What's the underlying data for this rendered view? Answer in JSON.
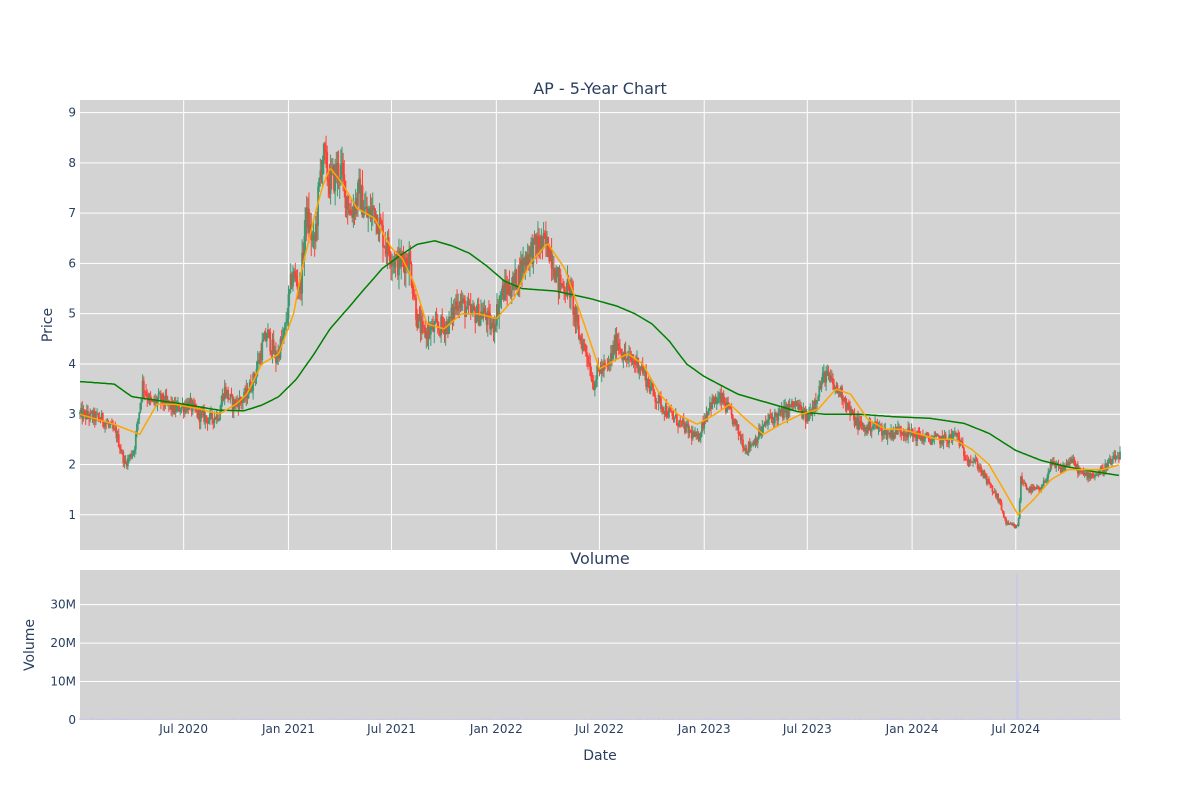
{
  "chart_data": [
    {
      "type": "candlestick",
      "title": "AP - 5-Year Chart",
      "ylabel": "Price",
      "xrange": [
        "2020-01-01",
        "2024-12-31"
      ],
      "ylim": [
        0.3,
        9.25
      ],
      "yticks": [
        1,
        2,
        3,
        4,
        5,
        6,
        7,
        8,
        9
      ],
      "grid": true,
      "legend": "none",
      "colors": {
        "up": "#3d9970",
        "down": "#ff4136",
        "ma_short": "#ffa500",
        "ma_long": "#008000",
        "plot_bg": "#d3d3d3"
      },
      "price_anchors": [
        [
          "2020-01-01",
          3.0
        ],
        [
          "2020-02-10",
          2.9
        ],
        [
          "2020-03-05",
          2.6
        ],
        [
          "2020-03-20",
          2.0
        ],
        [
          "2020-04-05",
          2.3
        ],
        [
          "2020-04-20",
          3.6
        ],
        [
          "2020-05-05",
          3.2
        ],
        [
          "2020-05-20",
          3.3
        ],
        [
          "2020-06-15",
          3.1
        ],
        [
          "2020-07-10",
          3.2
        ],
        [
          "2020-07-25",
          3.0
        ],
        [
          "2020-08-15",
          2.9
        ],
        [
          "2020-09-01",
          3.0
        ],
        [
          "2020-09-10",
          3.5
        ],
        [
          "2020-09-25",
          3.2
        ],
        [
          "2020-10-15",
          3.3
        ],
        [
          "2020-11-01",
          3.7
        ],
        [
          "2020-11-15",
          4.3
        ],
        [
          "2020-11-25",
          4.6
        ],
        [
          "2020-12-10",
          4.1
        ],
        [
          "2020-12-25",
          4.6
        ],
        [
          "2021-01-08",
          5.8
        ],
        [
          "2021-01-22",
          5.5
        ],
        [
          "2021-02-01",
          7.0
        ],
        [
          "2021-02-15",
          6.3
        ],
        [
          "2021-03-01",
          8.2
        ],
        [
          "2021-03-15",
          7.6
        ],
        [
          "2021-04-01",
          7.9
        ],
        [
          "2021-04-20",
          7.0
        ],
        [
          "2021-05-05",
          7.4
        ],
        [
          "2021-05-20",
          6.9
        ],
        [
          "2021-06-01",
          7.1
        ],
        [
          "2021-06-20",
          6.4
        ],
        [
          "2021-07-10",
          6.0
        ],
        [
          "2021-08-01",
          6.1
        ],
        [
          "2021-08-15",
          4.9
        ],
        [
          "2021-08-25",
          4.6
        ],
        [
          "2021-09-15",
          4.7
        ],
        [
          "2021-10-10",
          4.8
        ],
        [
          "2021-10-25",
          5.3
        ],
        [
          "2021-11-15",
          5.0
        ],
        [
          "2021-12-10",
          5.0
        ],
        [
          "2021-12-25",
          4.7
        ],
        [
          "2022-01-10",
          5.4
        ],
        [
          "2022-02-01",
          5.6
        ],
        [
          "2022-02-25",
          6.2
        ],
        [
          "2022-03-20",
          6.4
        ],
        [
          "2022-04-05",
          6.3
        ],
        [
          "2022-04-20",
          5.6
        ],
        [
          "2022-05-10",
          5.5
        ],
        [
          "2022-05-25",
          4.6
        ],
        [
          "2022-06-10",
          4.2
        ],
        [
          "2022-06-20",
          3.6
        ],
        [
          "2022-07-01",
          3.9
        ],
        [
          "2022-07-15",
          3.9
        ],
        [
          "2022-08-01",
          4.5
        ],
        [
          "2022-08-15",
          4.1
        ],
        [
          "2022-09-10",
          4.0
        ],
        [
          "2022-09-25",
          3.6
        ],
        [
          "2022-10-10",
          3.3
        ],
        [
          "2022-11-01",
          3.0
        ],
        [
          "2022-12-01",
          2.7
        ],
        [
          "2022-12-20",
          2.5
        ],
        [
          "2023-01-10",
          3.2
        ],
        [
          "2023-02-01",
          3.3
        ],
        [
          "2023-02-20",
          2.9
        ],
        [
          "2023-03-15",
          2.3
        ],
        [
          "2023-04-01",
          2.5
        ],
        [
          "2023-04-25",
          2.9
        ],
        [
          "2023-05-15",
          3.0
        ],
        [
          "2023-06-10",
          3.2
        ],
        [
          "2023-07-01",
          2.9
        ],
        [
          "2023-07-15",
          3.3
        ],
        [
          "2023-08-01",
          3.8
        ],
        [
          "2023-08-20",
          3.5
        ],
        [
          "2023-09-01",
          3.4
        ],
        [
          "2023-09-20",
          2.9
        ],
        [
          "2023-10-10",
          2.7
        ],
        [
          "2023-10-25",
          2.8
        ],
        [
          "2023-11-20",
          2.6
        ],
        [
          "2023-12-10",
          2.7
        ],
        [
          "2024-01-01",
          2.6
        ],
        [
          "2024-02-01",
          2.5
        ],
        [
          "2024-03-01",
          2.5
        ],
        [
          "2024-03-20",
          2.6
        ],
        [
          "2024-04-01",
          2.2
        ],
        [
          "2024-04-25",
          2.0
        ],
        [
          "2024-05-15",
          1.6
        ],
        [
          "2024-06-01",
          1.3
        ],
        [
          "2024-06-15",
          0.8
        ],
        [
          "2024-07-05",
          0.75
        ],
        [
          "2024-07-10",
          1.7
        ],
        [
          "2024-07-25",
          1.5
        ],
        [
          "2024-08-15",
          1.5
        ],
        [
          "2024-09-01",
          2.0
        ],
        [
          "2024-09-20",
          1.9
        ],
        [
          "2024-10-05",
          2.1
        ],
        [
          "2024-10-25",
          1.8
        ],
        [
          "2024-11-20",
          1.8
        ],
        [
          "2024-12-10",
          2.0
        ],
        [
          "2024-12-31",
          2.2
        ]
      ],
      "ma_short_anchors": [
        [
          "2020-01-01",
          3.0
        ],
        [
          "2020-03-01",
          2.8
        ],
        [
          "2020-04-15",
          2.6
        ],
        [
          "2020-05-15",
          3.2
        ],
        [
          "2020-06-15",
          3.2
        ],
        [
          "2020-08-01",
          3.1
        ],
        [
          "2020-09-01",
          3.0
        ],
        [
          "2020-10-01",
          3.2
        ],
        [
          "2020-10-20",
          3.4
        ],
        [
          "2020-11-15",
          4.0
        ],
        [
          "2020-12-15",
          4.2
        ],
        [
          "2021-01-10",
          5.0
        ],
        [
          "2021-01-25",
          5.9
        ],
        [
          "2021-02-15",
          6.9
        ],
        [
          "2021-03-01",
          7.5
        ],
        [
          "2021-03-15",
          7.9
        ],
        [
          "2021-04-05",
          7.6
        ],
        [
          "2021-05-01",
          7.1
        ],
        [
          "2021-06-01",
          6.9
        ],
        [
          "2021-07-01",
          6.3
        ],
        [
          "2021-07-20",
          6.1
        ],
        [
          "2021-08-10",
          5.6
        ],
        [
          "2021-09-01",
          4.8
        ],
        [
          "2021-10-01",
          4.7
        ],
        [
          "2021-11-01",
          5.0
        ],
        [
          "2021-12-01",
          5.0
        ],
        [
          "2022-01-01",
          4.9
        ],
        [
          "2022-02-01",
          5.3
        ],
        [
          "2022-03-01",
          6.0
        ],
        [
          "2022-04-01",
          6.4
        ],
        [
          "2022-05-01",
          5.9
        ],
        [
          "2022-06-01",
          4.9
        ],
        [
          "2022-07-01",
          3.9
        ],
        [
          "2022-08-01",
          4.1
        ],
        [
          "2022-08-20",
          4.2
        ],
        [
          "2022-09-15",
          4.0
        ],
        [
          "2022-10-15",
          3.4
        ],
        [
          "2022-11-15",
          3.0
        ],
        [
          "2022-12-20",
          2.8
        ],
        [
          "2023-01-20",
          3.0
        ],
        [
          "2023-02-15",
          3.2
        ],
        [
          "2023-03-15",
          2.9
        ],
        [
          "2023-04-15",
          2.6
        ],
        [
          "2023-05-15",
          2.8
        ],
        [
          "2023-06-20",
          3.0
        ],
        [
          "2023-07-20",
          3.1
        ],
        [
          "2023-08-20",
          3.5
        ],
        [
          "2023-09-15",
          3.4
        ],
        [
          "2023-10-15",
          2.9
        ],
        [
          "2023-11-15",
          2.7
        ],
        [
          "2023-12-15",
          2.7
        ],
        [
          "2024-01-15",
          2.6
        ],
        [
          "2024-02-15",
          2.5
        ],
        [
          "2024-03-15",
          2.5
        ],
        [
          "2024-04-15",
          2.3
        ],
        [
          "2024-05-15",
          2.0
        ],
        [
          "2024-06-15",
          1.4
        ],
        [
          "2024-07-05",
          1.0
        ],
        [
          "2024-08-01",
          1.3
        ],
        [
          "2024-09-01",
          1.7
        ],
        [
          "2024-10-01",
          1.9
        ],
        [
          "2024-11-01",
          1.9
        ],
        [
          "2024-12-01",
          1.9
        ],
        [
          "2024-12-31",
          2.0
        ]
      ],
      "ma_long_anchors": [
        [
          "2020-01-01",
          3.65
        ],
        [
          "2020-03-01",
          3.6
        ],
        [
          "2020-04-01",
          3.35
        ],
        [
          "2020-05-01",
          3.3
        ],
        [
          "2020-07-01",
          3.2
        ],
        [
          "2020-09-01",
          3.08
        ],
        [
          "2020-10-15",
          3.07
        ],
        [
          "2020-11-15",
          3.18
        ],
        [
          "2020-12-15",
          3.35
        ],
        [
          "2021-01-15",
          3.7
        ],
        [
          "2021-02-15",
          4.2
        ],
        [
          "2021-03-15",
          4.7
        ],
        [
          "2021-04-15",
          5.1
        ],
        [
          "2021-05-15",
          5.5
        ],
        [
          "2021-06-15",
          5.9
        ],
        [
          "2021-07-15",
          6.15
        ],
        [
          "2021-08-15",
          6.38
        ],
        [
          "2021-09-15",
          6.45
        ],
        [
          "2021-10-15",
          6.35
        ],
        [
          "2021-11-15",
          6.2
        ],
        [
          "2021-12-15",
          5.95
        ],
        [
          "2022-01-15",
          5.65
        ],
        [
          "2022-02-15",
          5.5
        ],
        [
          "2022-04-15",
          5.45
        ],
        [
          "2022-06-15",
          5.3
        ],
        [
          "2022-08-01",
          5.15
        ],
        [
          "2022-09-01",
          5.0
        ],
        [
          "2022-10-01",
          4.8
        ],
        [
          "2022-11-01",
          4.45
        ],
        [
          "2022-12-01",
          4.0
        ],
        [
          "2023-01-01",
          3.75
        ],
        [
          "2023-03-01",
          3.4
        ],
        [
          "2023-05-01",
          3.2
        ],
        [
          "2023-06-15",
          3.05
        ],
        [
          "2023-08-01",
          3.0
        ],
        [
          "2023-10-01",
          3.0
        ],
        [
          "2023-12-01",
          2.95
        ],
        [
          "2024-02-01",
          2.92
        ],
        [
          "2024-04-01",
          2.82
        ],
        [
          "2024-05-15",
          2.62
        ],
        [
          "2024-07-01",
          2.28
        ],
        [
          "2024-08-15",
          2.08
        ],
        [
          "2024-10-01",
          1.95
        ],
        [
          "2024-11-15",
          1.86
        ],
        [
          "2024-12-31",
          1.78
        ]
      ]
    },
    {
      "type": "bar",
      "title": "Volume",
      "xlabel": "Date",
      "ylabel": "Volume",
      "ylim": [
        0,
        39000000
      ],
      "yticks": [
        {
          "value": 0,
          "label": "0"
        },
        {
          "value": 10000000,
          "label": "10M"
        },
        {
          "value": 20000000,
          "label": "20M"
        },
        {
          "value": 30000000,
          "label": "30M"
        }
      ],
      "xticks": [
        {
          "date": "2020-07-01",
          "label": "Jul 2020"
        },
        {
          "date": "2021-01-01",
          "label": "Jan 2021"
        },
        {
          "date": "2021-07-01",
          "label": "Jul 2021"
        },
        {
          "date": "2022-01-01",
          "label": "Jan 2022"
        },
        {
          "date": "2022-07-01",
          "label": "Jul 2022"
        },
        {
          "date": "2023-01-01",
          "label": "Jan 2023"
        },
        {
          "date": "2023-07-01",
          "label": "Jul 2023"
        },
        {
          "date": "2024-01-01",
          "label": "Jan 2024"
        },
        {
          "date": "2024-07-01",
          "label": "Jul 2024"
        }
      ],
      "baseline_volume": 300000,
      "spikes": [
        {
          "date": "2024-07-03",
          "value": 38000000
        },
        {
          "date": "2024-07-05",
          "value": 12000000
        }
      ],
      "bar_color": "#c8c8e8"
    }
  ]
}
